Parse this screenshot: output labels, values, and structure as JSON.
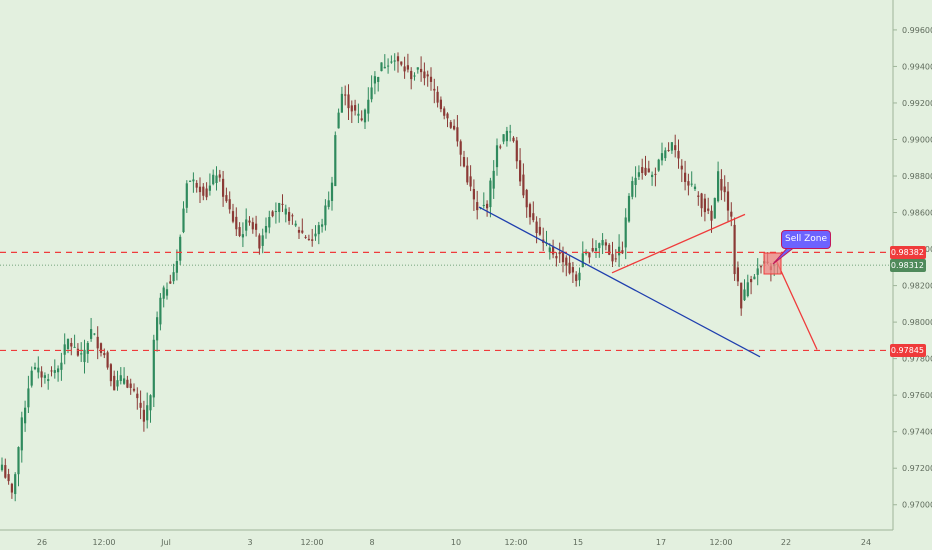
{
  "chart_data": {
    "type": "candlestick",
    "instrument": "",
    "y_axis": {
      "min": 0.969,
      "max": 0.9972,
      "ticks": [
        "0.97000",
        "0.97200",
        "0.97400",
        "0.97600",
        "0.97800",
        "0.98000",
        "0.98200",
        "0.98400",
        "0.98600",
        "0.98800",
        "0.99000",
        "0.99200",
        "0.99400",
        "0.99600"
      ]
    },
    "x_axis": {
      "ticks": [
        "26",
        "12:00",
        "Jul",
        "3",
        "12:00",
        "8",
        "10",
        "12:00",
        "15",
        "17",
        "12:00",
        "22",
        "24"
      ]
    },
    "price_lines": {
      "resistance": {
        "value": 0.98382,
        "label": "0.98382",
        "color": "#ef3b3b"
      },
      "current": {
        "value": 0.98312,
        "label": "0.98312",
        "color": "#4f8a5b"
      },
      "target": {
        "value": 0.97845,
        "label": "0.97845",
        "color": "#ef3b3b"
      }
    },
    "trendlines": [
      {
        "name": "support",
        "color": "#1f3fae",
        "from": [
          0.0,
          0.9863
        ],
        "to": [
          1.0,
          0.9781
        ]
      },
      {
        "name": "rising",
        "color": "#ef3b3b",
        "from": [
          0.0,
          0.9827
        ],
        "to": [
          1.0,
          0.9859
        ]
      },
      {
        "name": "projection",
        "color": "#ef3b3b",
        "from": [
          0.0,
          0.9834
        ],
        "to": [
          1.0,
          0.9785
        ]
      }
    ],
    "annotations": [
      {
        "type": "callout",
        "text": "Sell Zone"
      }
    ],
    "anchors": [
      [
        0,
        0.9722
      ],
      [
        3,
        0.9705
      ],
      [
        6,
        0.9745
      ],
      [
        9,
        0.9775
      ],
      [
        13,
        0.977
      ],
      [
        17,
        0.9775
      ],
      [
        20,
        0.979
      ],
      [
        24,
        0.978
      ],
      [
        27,
        0.9795
      ],
      [
        31,
        0.9782
      ],
      [
        34,
        0.9765
      ],
      [
        37,
        0.977
      ],
      [
        40,
        0.976
      ],
      [
        42,
        0.9752
      ],
      [
        43,
        0.9746
      ],
      [
        45,
        0.9758
      ],
      [
        46,
        0.979
      ],
      [
        48,
        0.9812
      ],
      [
        50,
        0.982
      ],
      [
        53,
        0.9832
      ],
      [
        56,
        0.9878
      ],
      [
        59,
        0.9876
      ],
      [
        62,
        0.987
      ],
      [
        65,
        0.9882
      ],
      [
        68,
        0.9865
      ],
      [
        72,
        0.9847
      ],
      [
        75,
        0.9857
      ],
      [
        78,
        0.9843
      ],
      [
        81,
        0.986
      ],
      [
        84,
        0.9863
      ],
      [
        87,
        0.9858
      ],
      [
        90,
        0.985
      ],
      [
        94,
        0.9845
      ],
      [
        97,
        0.9855
      ],
      [
        100,
        0.9875
      ],
      [
        101,
        0.9905
      ],
      [
        103,
        0.9925
      ],
      [
        106,
        0.9917
      ],
      [
        109,
        0.991
      ],
      [
        112,
        0.993
      ],
      [
        115,
        0.994
      ],
      [
        118,
        0.9945
      ],
      [
        121,
        0.994
      ],
      [
        124,
        0.9935
      ],
      [
        127,
        0.9938
      ],
      [
        130,
        0.993
      ],
      [
        134,
        0.9915
      ],
      [
        137,
        0.9905
      ],
      [
        140,
        0.9885
      ],
      [
        144,
        0.986
      ],
      [
        147,
        0.9865
      ],
      [
        150,
        0.9895
      ],
      [
        153,
        0.9904
      ],
      [
        155,
        0.99
      ],
      [
        158,
        0.987
      ],
      [
        161,
        0.9855
      ],
      [
        164,
        0.9842
      ],
      [
        167,
        0.9838
      ],
      [
        170,
        0.9835
      ],
      [
        172,
        0.9828
      ],
      [
        174,
        0.9823
      ],
      [
        176,
        0.9835
      ],
      [
        179,
        0.984
      ],
      [
        182,
        0.9845
      ],
      [
        185,
        0.9835
      ],
      [
        188,
        0.984
      ],
      [
        190,
        0.987
      ],
      [
        193,
        0.9885
      ],
      [
        197,
        0.988
      ],
      [
        200,
        0.989
      ],
      [
        203,
        0.9897
      ],
      [
        206,
        0.9882
      ],
      [
        209,
        0.9875
      ],
      [
        213,
        0.9862
      ],
      [
        215,
        0.9855
      ],
      [
        217,
        0.988
      ],
      [
        219,
        0.987
      ],
      [
        221,
        0.9855
      ],
      [
        222,
        0.9828
      ],
      [
        223,
        0.9822
      ],
      [
        224,
        0.981
      ],
      [
        226,
        0.9822
      ],
      [
        228,
        0.9827
      ],
      [
        231,
        0.9831
      ],
      [
        233,
        0.983
      ],
      [
        235,
        0.9831
      ]
    ]
  }
}
